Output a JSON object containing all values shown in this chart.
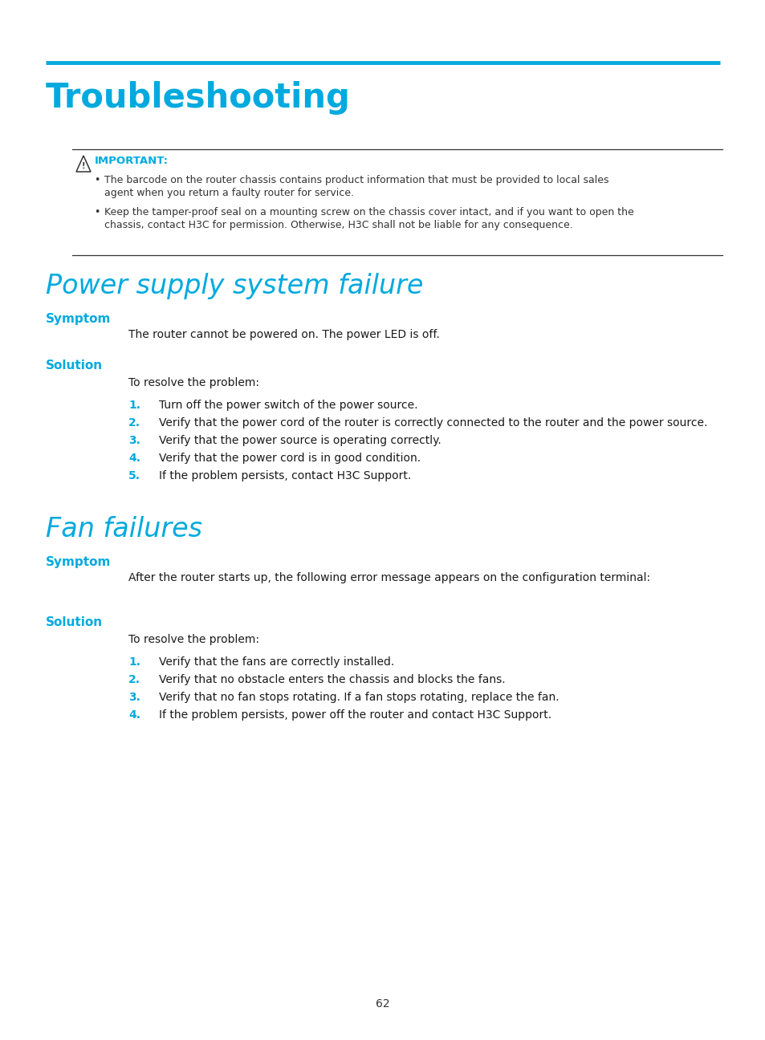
{
  "bg_color": "#ffffff",
  "cyan": "#00aade",
  "black": "#1a1a1a",
  "gray": "#333333",
  "page_number": "62",
  "top_line_color": "#00aade",
  "title": "Troubleshooting",
  "important_label": "IMPORTANT:",
  "imp_line1a": "The barcode on the router chassis contains product information that must be provided to local sales",
  "imp_line1b": "agent when you return a faulty router for service.",
  "imp_line2a": "Keep the tamper-proof seal on a mounting screw on the chassis cover intact, and if you want to open the",
  "imp_line2b": "chassis, contact H3C for permission. Otherwise, H3C shall not be liable for any consequence.",
  "section1_title": "Power supply system failure",
  "section1_symptom_label": "Symptom",
  "section1_symptom_text": "The router cannot be powered on. The power LED is off.",
  "section1_solution_label": "Solution",
  "section1_solution_intro": "To resolve the problem:",
  "section1_solution_steps": [
    "Turn off the power switch of the power source.",
    "Verify that the power cord of the router is correctly connected to the router and the power source.",
    "Verify that the power source is operating correctly.",
    "Verify that the power cord is in good condition.",
    "If the problem persists, contact H3C Support."
  ],
  "section2_title": "Fan failures",
  "section2_symptom_label": "Symptom",
  "section2_symptom_text": "After the router starts up, the following error message appears on the configuration terminal:",
  "section2_solution_label": "Solution",
  "section2_solution_intro": "To resolve the problem:",
  "section2_solution_steps": [
    "Verify that the fans are correctly installed.",
    "Verify that no obstacle enters the chassis and blocks the fans.",
    "Verify that no fan stops rotating. If a fan stops rotating, replace the fan.",
    "If the problem persists, power off the router and contact H3C Support."
  ]
}
